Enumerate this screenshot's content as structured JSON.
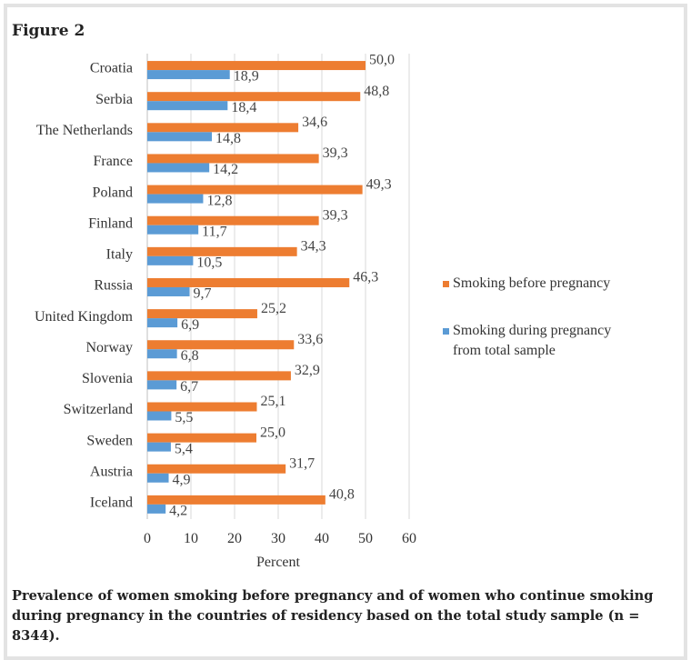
{
  "figure_label": "Figure 2",
  "caption": "Prevalence of women smoking before pregnancy and of women who continue smoking during pregnancy in the countries of residency based on the total study sample (n = 8344).",
  "colors": {
    "before": "#ed7d31",
    "during": "#5b9bd5"
  },
  "chart_data": {
    "type": "bar",
    "orientation": "horizontal",
    "categories": [
      "Croatia",
      "Serbia",
      "The Netherlands",
      "France",
      "Poland",
      "Finland",
      "Italy",
      "Russia",
      "United Kingdom",
      "Norway",
      "Slovenia",
      "Switzerland",
      "Sweden",
      "Austria",
      "Iceland"
    ],
    "series": [
      {
        "name": "Smoking before pregnancy",
        "values": [
          50.0,
          48.8,
          34.6,
          39.3,
          49.3,
          39.3,
          34.3,
          46.3,
          25.2,
          33.6,
          32.9,
          25.1,
          25.0,
          31.7,
          40.8
        ],
        "labels": [
          "50,0",
          "48,8",
          "34,6",
          "39,3",
          "49,3",
          "39,3",
          "34,3",
          "46,3",
          "25,2",
          "33,6",
          "32,9",
          "25,1",
          "25,0",
          "31,7",
          "40,8"
        ]
      },
      {
        "name": "Smoking during pregnancy from total sample",
        "values": [
          18.9,
          18.4,
          14.8,
          14.2,
          12.8,
          11.7,
          10.5,
          9.7,
          6.9,
          6.8,
          6.7,
          5.5,
          5.4,
          4.9,
          4.2
        ],
        "labels": [
          "18,9",
          "18,4",
          "14,8",
          "14,2",
          "12,8",
          "11,7",
          "10,5",
          "9,7",
          "6,9",
          "6,8",
          "6,7",
          "5,5",
          "5,4",
          "4,9",
          "4,2"
        ]
      }
    ],
    "legend_lines": [
      [
        "Smoking before pregnancy"
      ],
      [
        "Smoking during pregnancy",
        "from total sample"
      ]
    ],
    "xlabel": "Percent",
    "xlim": [
      0,
      60
    ],
    "xticks": [
      "0",
      "10",
      "20",
      "30",
      "40",
      "50",
      "60"
    ],
    "grid": true,
    "legend_position": "right"
  }
}
